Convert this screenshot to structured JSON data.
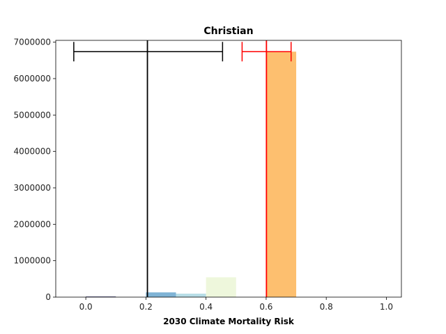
{
  "chart_data": {
    "type": "bar",
    "title": "Christian",
    "xlabel": "2030 Climate Mortality Risk",
    "ylabel": "",
    "xlim": [
      -0.1,
      1.05
    ],
    "ylim": [
      0,
      7050000
    ],
    "x_ticks": [
      0.0,
      0.2,
      0.4,
      0.6,
      0.8,
      1.0
    ],
    "x_tick_labels": [
      "0.0",
      "0.2",
      "0.4",
      "0.6",
      "0.8",
      "1.0"
    ],
    "y_ticks": [
      0,
      1000000,
      2000000,
      3000000,
      4000000,
      5000000,
      6000000,
      7000000
    ],
    "y_tick_labels": [
      "0",
      "1000000",
      "2000000",
      "3000000",
      "4000000",
      "5000000",
      "6000000",
      "7000000"
    ],
    "grid": false,
    "bars": [
      {
        "x0": 0.0,
        "x1": 0.1,
        "value": 15000,
        "color": "#1a1a5e"
      },
      {
        "x0": 0.2,
        "x1": 0.3,
        "value": 130000,
        "color": "#7fb3d5"
      },
      {
        "x0": 0.3,
        "x1": 0.4,
        "value": 95000,
        "color": "#b7dde6"
      },
      {
        "x0": 0.4,
        "x1": 0.5,
        "value": 545000,
        "color": "#eef7dc"
      },
      {
        "x0": 0.6,
        "x1": 0.7,
        "value": 6740000,
        "color": "#fdbf6f"
      }
    ],
    "reference_lines": [
      {
        "name": "black-mean",
        "x": 0.205,
        "color": "#000000",
        "err_low": -0.04,
        "err_high": 0.455,
        "err_y": 6740000
      },
      {
        "name": "red-mean",
        "x": 0.601,
        "color": "#ff0000",
        "err_low": 0.52,
        "err_high": 0.683,
        "err_y": 6740000
      }
    ]
  }
}
